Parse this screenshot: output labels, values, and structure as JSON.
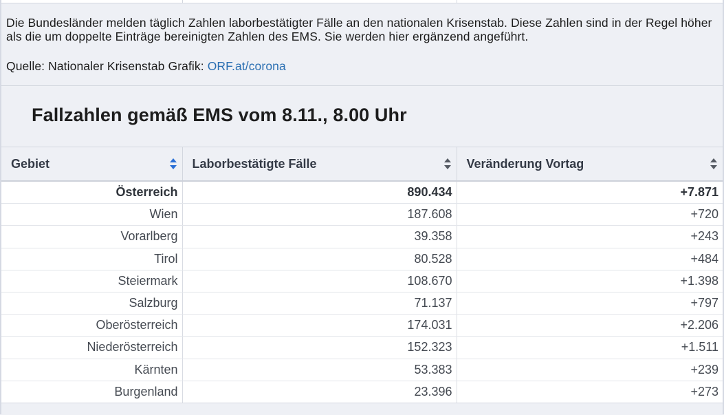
{
  "note": {
    "text": "Die Bundesländer melden täglich Zahlen laborbestätigter Fälle an den nationalen Krisenstab. Diese Zahlen sind in der Regel höher als die um doppelte Einträge bereinigten Zahlen des EMS. Sie werden hier ergänzend angeführt.",
    "source_label": "Quelle: Nationaler Krisenstab Grafik: ",
    "source_link": "ORF.at/corona"
  },
  "section": {
    "title": "Fallzahlen gemäß EMS vom 8.11., 8.00 Uhr"
  },
  "table": {
    "headers": [
      "Gebiet",
      "Laborbestätigte Fälle",
      "Veränderung Vortag"
    ],
    "active_sort_column": 0,
    "accent_color": "#2a6fd6",
    "rows": [
      {
        "region": "Österreich",
        "cases": "890.434",
        "change": "+7.871"
      },
      {
        "region": "Wien",
        "cases": "187.608",
        "change": "+720"
      },
      {
        "region": "Vorarlberg",
        "cases": "39.358",
        "change": "+243"
      },
      {
        "region": "Tirol",
        "cases": "80.528",
        "change": "+484"
      },
      {
        "region": "Steiermark",
        "cases": "108.670",
        "change": "+1.398"
      },
      {
        "region": "Salzburg",
        "cases": "71.137",
        "change": "+797"
      },
      {
        "region": "Oberösterreich",
        "cases": "174.031",
        "change": "+2.206"
      },
      {
        "region": "Niederösterreich",
        "cases": "152.323",
        "change": "+1.511"
      },
      {
        "region": "Kärnten",
        "cases": "53.383",
        "change": "+239"
      },
      {
        "region": "Burgenland",
        "cases": "23.396",
        "change": "+273"
      }
    ]
  }
}
